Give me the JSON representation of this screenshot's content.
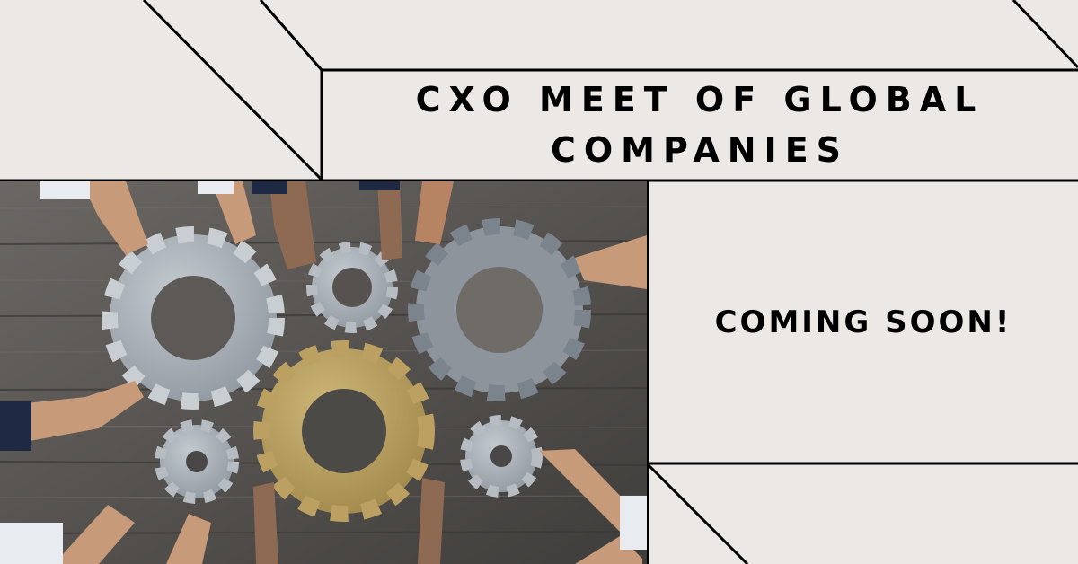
{
  "headline": "CXO MEET OF GLOBAL COMPANIES",
  "status_text": "COMING SOON!",
  "photo_subject": "gears-teamwork-photo",
  "colors": {
    "background": "#ece8e5",
    "line": "#000000",
    "wood": "#5e5b58",
    "steel_gear": "#9aa2aa",
    "gold_gear": "#b39a5a"
  }
}
